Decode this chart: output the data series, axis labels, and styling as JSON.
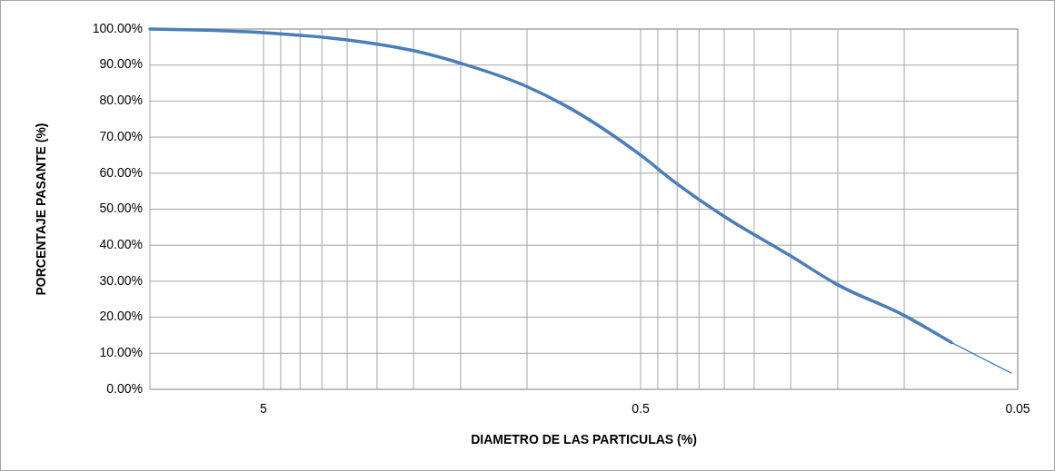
{
  "chart_data": {
    "type": "line",
    "xlabel": "DIAMETRO  DE LAS PARTICULAS  (%)",
    "ylabel": "PORCENTAJE  PASANTE  (%)",
    "log": "x",
    "grid": true,
    "marker": "none",
    "xlim": [
      10,
      0.05
    ],
    "xticks": [
      5,
      0.5,
      0.05,
      {
        "value": 4.5,
        "label": null
      },
      {
        "value": 4,
        "label": null
      },
      {
        "value": 3.5,
        "label": null
      },
      {
        "value": 3,
        "label": null
      },
      {
        "value": 2.5,
        "label": null
      },
      {
        "value": 2,
        "label": null
      },
      {
        "value": 1.5,
        "label": null
      },
      {
        "value": 1,
        "label": null
      },
      {
        "value": 0.45,
        "label": null
      },
      {
        "value": 0.4,
        "label": null
      },
      {
        "value": 0.35,
        "label": null
      },
      {
        "value": 0.3,
        "label": null
      },
      {
        "value": 0.25,
        "label": null
      },
      {
        "value": 0.2,
        "label": null
      },
      {
        "value": 0.15,
        "label": null
      },
      {
        "value": 0.1,
        "label": null
      }
    ],
    "ylim": [
      0,
      100
    ],
    "yticks": [
      {
        "value": 0,
        "label": "0.00%"
      },
      {
        "value": 10,
        "label": "10.00%"
      },
      {
        "value": 20,
        "label": "20.00%"
      },
      {
        "value": 30,
        "label": "30.00%"
      },
      {
        "value": 40,
        "label": "40.00%"
      },
      {
        "value": 50,
        "label": "50.00%"
      },
      {
        "value": 60,
        "label": "60.00%"
      },
      {
        "value": 70,
        "label": "70.00%"
      },
      {
        "value": 80,
        "label": "80.00%"
      },
      {
        "value": 90,
        "label": "90.00%"
      },
      {
        "value": 100,
        "label": "100.00%"
      }
    ],
    "series": [
      {
        "color": "#4a7ebb",
        "x": [
          10,
          5,
          3,
          2,
          1.5,
          1,
          0.8,
          0.5,
          0.4,
          0.3,
          0.2,
          0.15,
          0.1,
          0.075
        ],
        "values": [
          100,
          99,
          97,
          94,
          90.5,
          84,
          79,
          65,
          57,
          48,
          37,
          29,
          20.5,
          13
        ]
      },
      {
        "color": "#4a7ebb",
        "x": [
          0.075,
          0.052
        ],
        "values": [
          13,
          4.5
        ]
      }
    ]
  }
}
